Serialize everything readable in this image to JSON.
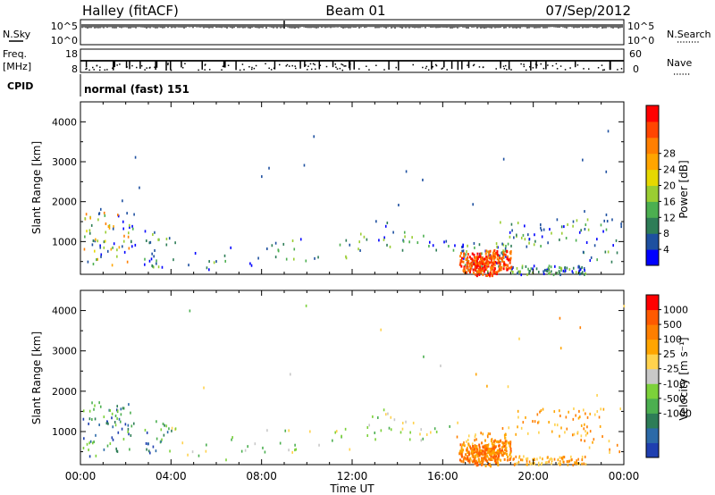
{
  "header": {
    "station": "Halley (fitACF)",
    "beam": "Beam 01",
    "date": "07/Sep/2012"
  },
  "strip_panels": {
    "sky": {
      "left_label": "N.Sky",
      "right_label": "N.Search",
      "left_ticks": [
        "10^5",
        "10^0"
      ],
      "right_ticks": [
        "10^5",
        "10^0"
      ]
    },
    "freq": {
      "left_label_line1": "Freq.",
      "left_label_line2": "[MHz]",
      "right_label": "Nave",
      "left_ticks": [
        "18",
        "8"
      ],
      "right_ticks": [
        "60",
        "0"
      ]
    },
    "cpid": {
      "label": "CPID",
      "text": "normal (fast) 151"
    }
  },
  "chart_data": [
    {
      "type": "heatmap",
      "name": "power",
      "ylabel": "Slant Range [km]",
      "ylim": [
        180,
        4500
      ],
      "yticks": [
        1000,
        2000,
        3000,
        4000
      ],
      "x_ticks": [
        "00:00",
        "04:00",
        "08:00",
        "12:00",
        "16:00",
        "20:00",
        "00:00"
      ],
      "colorbar_label": "Power [dB]",
      "colorbar_ticks": [
        "4",
        "8",
        "12",
        "16",
        "20",
        "24",
        "28"
      ],
      "colorbar_colors": [
        "#0000ff",
        "#1e50a0",
        "#2e7d57",
        "#4caf50",
        "#9acd32",
        "#e6d800",
        "#ffa500",
        "#ff7f00",
        "#ff4500",
        "#ff0000"
      ]
    },
    {
      "type": "heatmap",
      "name": "velocity",
      "ylabel": "Slant Range [km]",
      "ylim": [
        180,
        4500
      ],
      "yticks": [
        1000,
        2000,
        3000,
        4000
      ],
      "x_ticks": [
        "00:00",
        "04:00",
        "08:00",
        "12:00",
        "16:00",
        "20:00",
        "00:00"
      ],
      "xlabel": "Time UT",
      "colorbar_label": "Velocity [m s⁻¹]",
      "colorbar_ticks": [
        "1000",
        "500",
        "100",
        "25",
        "-25",
        "-100",
        "-500",
        "-1000"
      ],
      "colorbar_colors": [
        "#1f3fb0",
        "#2c6aa8",
        "#2e7d57",
        "#4caf50",
        "#7cd13a",
        "#c8c8c8",
        "#ffd24d",
        "#ffa500",
        "#ff7f00",
        "#ff5a00",
        "#ff0000"
      ]
    }
  ]
}
